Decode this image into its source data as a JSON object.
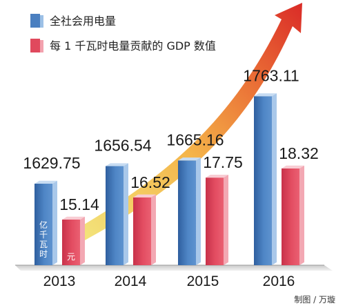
{
  "chart_data": {
    "type": "bar",
    "title": "",
    "xlabel": "",
    "ylabel": "",
    "categories": [
      "2013",
      "2014",
      "2015",
      "2016"
    ],
    "series": [
      {
        "name": "全社会用电量",
        "unit": "亿千瓦时",
        "color": "#4a7fc0",
        "values": [
          1629.75,
          1656.54,
          1665.16,
          1763.11
        ]
      },
      {
        "name": "每 1 千瓦时电量贡献的 GDP 数值",
        "unit": "元",
        "color": "#e0495d",
        "values": [
          15.14,
          16.52,
          17.75,
          18.32
        ]
      }
    ],
    "legend_position": "top-left",
    "trend_arrow": true
  },
  "credit": "制图 / 万璇"
}
